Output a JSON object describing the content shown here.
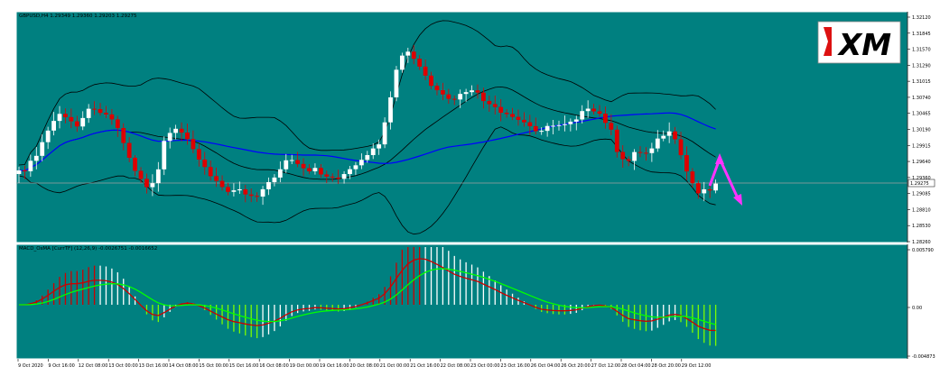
{
  "colors": {
    "background": "#008080",
    "frame": "#ffffff",
    "bull_candle": "#ffffff",
    "bear_candle": "#dd0000",
    "bollinger": "#000000",
    "moving_average": "#0000ff",
    "current_price_line": "#a0a0a0",
    "macd_line": "#cc0000",
    "signal_line": "#00ff00",
    "hist_positive_rising": "#cc0000",
    "hist_positive_falling": "#ffffff",
    "hist_negative_falling": "#7cfc00",
    "hist_negative_rising": "#ffffff",
    "forecast_arrow": "#ff33ff",
    "logo_red": "#dd1111"
  },
  "main_chart": {
    "title": "GBPUSD,H4  1.29349 1.29360 1.29203 1.29275",
    "price_axis": [
      "1.32120",
      "1.31845",
      "1.31570",
      "1.31290",
      "1.31015",
      "1.30740",
      "1.30465",
      "1.30190",
      "1.29915",
      "1.29640",
      "1.29360",
      "1.29085",
      "1.28810",
      "1.28530",
      "1.28260"
    ],
    "current_price": "1.29275",
    "logo": {
      "text": "XM",
      "icon_name": "xm-logo-icon"
    },
    "forecast_arrow_icon": "forecast-zigzag-arrow-icon"
  },
  "macd_panel": {
    "title": "MACD_OsMA [CurrTF] (12,26,9) -0.0026751 -0.0016652",
    "axis": [
      "0.005790",
      "0.00",
      "-0.004873"
    ]
  },
  "time_axis": [
    "9 Oct 2020",
    "9 Oct 16:00",
    "12 Oct 08:00",
    "13 Oct 00:00",
    "13 Oct 16:00",
    "14 Oct 08:00",
    "15 Oct 00:00",
    "15 Oct 16:00",
    "16 Oct 08:00",
    "19 Oct 00:00",
    "19 Oct 16:00",
    "20 Oct 08:00",
    "21 Oct 00:00",
    "21 Oct 16:00",
    "22 Oct 08:00",
    "23 Oct 00:00",
    "23 Oct 16:00",
    "26 Oct 04:00",
    "26 Oct 20:00",
    "27 Oct 12:00",
    "28 Oct 04:00",
    "28 Oct 20:00",
    "29 Oct 12:00"
  ]
}
